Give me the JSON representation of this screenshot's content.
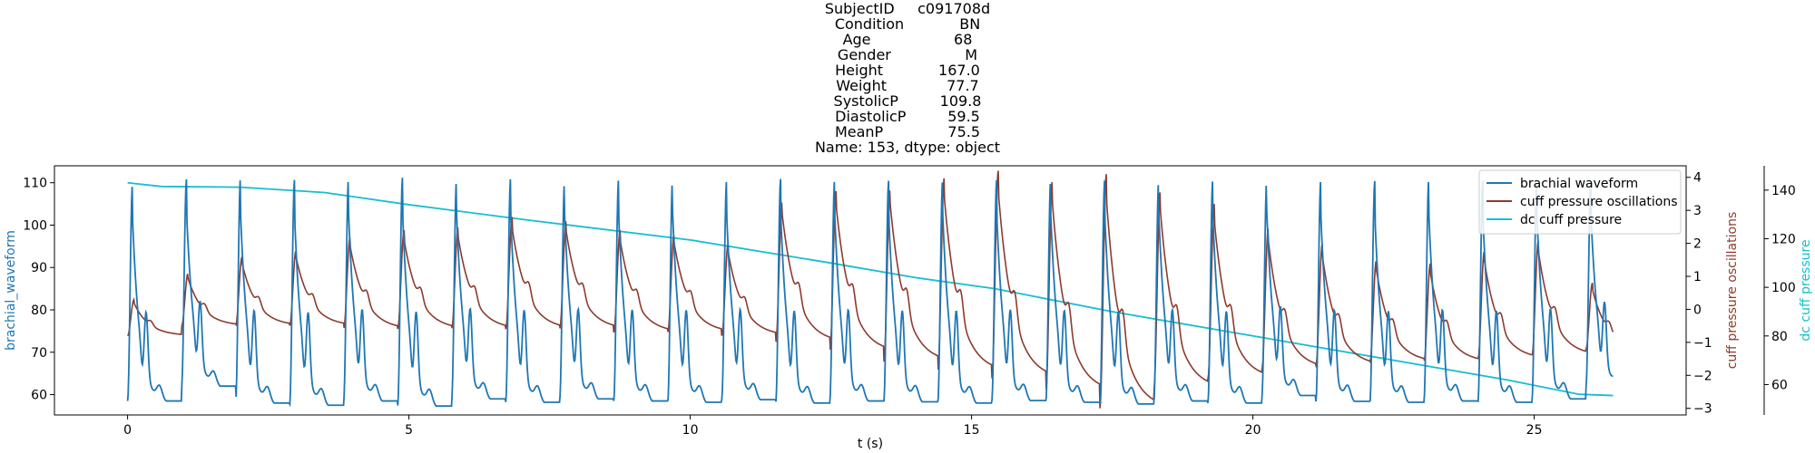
{
  "title_lines": [
    "SubjectID     c091708d",
    "Condition            BN",
    "Age                  68",
    "Gender                M",
    "Height            167.0",
    "Weight             77.7",
    "SystolicP         109.8",
    "DiastolicP         59.5",
    "MeanP              75.5",
    "Name: 153, dtype: object"
  ],
  "chart_data": {
    "type": "line",
    "xlabel": "t (s)",
    "xlim": [
      -1.3,
      27.7
    ],
    "x_ticks": [
      0,
      5,
      10,
      15,
      20,
      25
    ],
    "duration": 26.4,
    "heart_rate_interval_s": 0.96,
    "grid": false,
    "legend_position": "top-right",
    "axes": {
      "left": {
        "label": "brachial_waveform",
        "color": "#1f77b4",
        "ylim": [
          55.2,
          114.0
        ],
        "ticks": [
          60,
          70,
          80,
          90,
          100,
          110
        ]
      },
      "right_inner": {
        "label": "cuff pressure oscillations",
        "color": "#8c3b2e",
        "ylim": [
          -3.2,
          4.35
        ],
        "ticks": [
          -3,
          -2,
          -1,
          0,
          1,
          2,
          3,
          4
        ]
      },
      "right_outer": {
        "label": "dc cuff pressure",
        "color": "#17becf",
        "ylim": [
          47.5,
          150.0
        ],
        "ticks": [
          60,
          80,
          100,
          120,
          140
        ]
      }
    },
    "series": [
      {
        "name": "brachial waveform",
        "axis": "left",
        "color": "#1f77b4",
        "peaks": [
          109.5,
          110.8,
          111.2,
          110.7,
          111.0,
          111.3,
          110.8,
          111.0,
          110.5,
          110.8,
          111.0,
          110.6,
          110.9,
          110.8,
          110.5,
          110.9,
          110.7,
          110.8,
          110.7,
          110.8,
          110.6,
          110.9,
          110.6,
          110.4,
          110.8,
          110.5,
          110.7,
          110.3
        ],
        "troughs": [
          58.5,
          62.0,
          58.0,
          57.5,
          58.5,
          57.3,
          59.0,
          58.2,
          59.0,
          58.5,
          58.2,
          58.8,
          58.0,
          58.5,
          58.3,
          58.0,
          58.6,
          58.2,
          57.8,
          58.5,
          58.0,
          59.8,
          58.4,
          58.2,
          58.5,
          58.2,
          59.0,
          62.0
        ],
        "dicrotic_peak": 81.0
      },
      {
        "name": "cuff pressure oscillations",
        "axis": "right_inner",
        "color": "#8c3b2e",
        "peaks": [
          0.3,
          1.1,
          1.6,
          1.8,
          2.2,
          2.4,
          2.5,
          2.8,
          2.7,
          2.4,
          2.3,
          2.0,
          3.3,
          3.6,
          3.7,
          4.0,
          4.2,
          3.9,
          4.1,
          3.6,
          3.2,
          2.5,
          2.0,
          1.5,
          1.4,
          1.8,
          2.1,
          0.8
        ],
        "troughs": [
          -0.8,
          -0.5,
          -0.5,
          -0.5,
          -0.6,
          -0.6,
          -0.6,
          -0.6,
          -0.6,
          -0.7,
          -0.7,
          -0.8,
          -1.0,
          -1.3,
          -1.6,
          -1.9,
          -2.1,
          -2.5,
          -3.0,
          -2.4,
          -2.1,
          -1.8,
          -1.7,
          -1.6,
          -1.6,
          -1.5,
          -1.4,
          -1.2
        ]
      },
      {
        "name": "dc cuff pressure",
        "axis": "right_outer",
        "color": "#17becf",
        "points": [
          [
            0,
            143.0
          ],
          [
            0.6,
            141.5
          ],
          [
            2.0,
            141.2
          ],
          [
            3.5,
            139.0
          ],
          [
            5.0,
            134.0
          ],
          [
            7.0,
            128.0
          ],
          [
            10.0,
            119.5
          ],
          [
            12.5,
            110.0
          ],
          [
            14.0,
            104.0
          ],
          [
            15.4,
            99.5
          ],
          [
            17.5,
            90.0
          ],
          [
            20.0,
            80.0
          ],
          [
            22.5,
            70.0
          ],
          [
            24.5,
            62.0
          ],
          [
            25.8,
            56.0
          ],
          [
            26.4,
            55.5
          ]
        ]
      }
    ]
  }
}
